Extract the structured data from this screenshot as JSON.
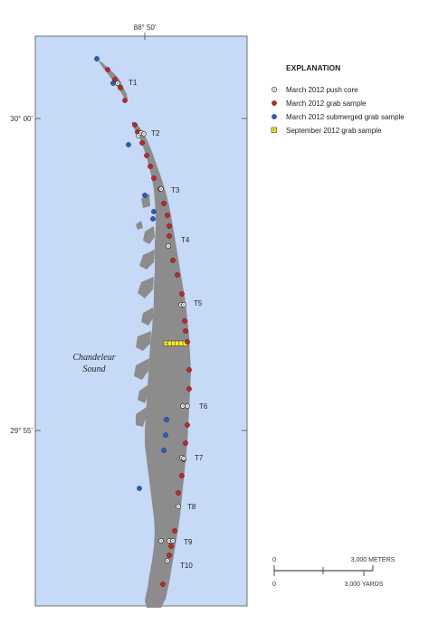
{
  "map": {
    "water_label_line1": "Chandeleur",
    "water_label_line2": "Sound",
    "longitude_label": "88° 50'",
    "latitude_labels": [
      "30° 00'",
      "29° 55'"
    ],
    "water_color": "#c6daf7",
    "land_color": "#8c8c8c"
  },
  "transects": [
    "T1",
    "T2",
    "T3",
    "T4",
    "T5",
    "T6",
    "T7",
    "T8",
    "T9",
    "T10"
  ],
  "legend": {
    "title": "EXPLANATION",
    "items": [
      {
        "label": "March 2012 push core",
        "kind": "push-core",
        "color": "#ffffff"
      },
      {
        "label": "March 2012 grab sample",
        "kind": "grab",
        "color": "#d42020"
      },
      {
        "label": "March 2012 submerged grab sample",
        "kind": "submerged",
        "color": "#1f5fd6"
      },
      {
        "label": "September 2012 grab sample",
        "kind": "september",
        "color": "#f2ee20"
      }
    ]
  },
  "scale": {
    "zero_top": "0",
    "zero_bottom": "0",
    "meters_label": "3,000 METERS",
    "yards_label": "3,000 YARDS"
  }
}
